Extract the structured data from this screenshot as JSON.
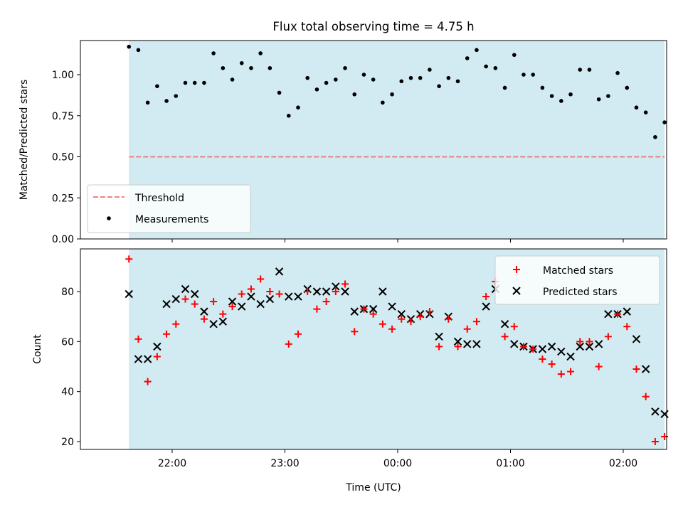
{
  "title": "Flux total observing time = 4.75 h",
  "colors": {
    "band": "#add8e6",
    "threshold": "#f08080",
    "matched": "#ff0000",
    "predicted": "#000000",
    "measurement": "#000000"
  },
  "chart_data": [
    {
      "type": "scatter",
      "title": "Flux total observing time = 4.75 h",
      "ylabel": "Matched/Predicted stars",
      "xlabel": "",
      "ylim": [
        0,
        1.2
      ],
      "yticks": [
        "0.00",
        "0.25",
        "0.50",
        "0.75",
        "1.00"
      ],
      "x_range": [
        "21:23",
        "02:20"
      ],
      "shaded_span": [
        "21:37",
        "02:22"
      ],
      "grid": false,
      "legend_position": "lower-left",
      "threshold": {
        "name": "Threshold",
        "value": 0.5
      },
      "series": [
        {
          "name": "Measurements",
          "x": [
            "21:37",
            "21:42",
            "21:47",
            "21:52",
            "21:57",
            "22:02",
            "22:07",
            "22:12",
            "22:17",
            "22:22",
            "22:27",
            "22:32",
            "22:37",
            "22:42",
            "22:47",
            "22:52",
            "22:57",
            "23:02",
            "23:07",
            "23:12",
            "23:17",
            "23:22",
            "23:27",
            "23:32",
            "23:37",
            "23:42",
            "23:47",
            "23:52",
            "23:57",
            "00:02",
            "00:07",
            "00:12",
            "00:17",
            "00:22",
            "00:27",
            "00:32",
            "00:37",
            "00:42",
            "00:47",
            "00:52",
            "00:57",
            "01:02",
            "01:07",
            "01:12",
            "01:17",
            "01:22",
            "01:27",
            "01:32",
            "01:37",
            "01:42",
            "01:47",
            "01:52",
            "01:57",
            "02:02",
            "02:07",
            "02:12",
            "02:17",
            "02:22"
          ],
          "y": [
            1.17,
            1.15,
            0.83,
            0.93,
            0.84,
            0.87,
            0.95,
            0.95,
            0.95,
            1.13,
            1.04,
            0.97,
            1.07,
            1.04,
            1.13,
            1.04,
            0.89,
            0.75,
            0.8,
            0.98,
            0.91,
            0.95,
            0.97,
            1.04,
            0.88,
            1.0,
            0.97,
            0.83,
            0.88,
            0.96,
            0.98,
            0.98,
            1.03,
            0.93,
            0.98,
            0.96,
            1.1,
            1.15,
            1.05,
            1.04,
            0.92,
            1.12,
            1.0,
            1.0,
            0.92,
            0.87,
            0.84,
            0.88,
            1.03,
            1.03,
            0.85,
            0.87,
            1.01,
            0.92,
            0.8,
            0.77,
            0.62,
            0.71
          ]
        }
      ]
    },
    {
      "type": "scatter",
      "title": "",
      "xlabel": "Time (UTC)",
      "ylabel": "Count",
      "ylim": [
        16,
        96
      ],
      "yticks": [
        "20",
        "40",
        "60",
        "80"
      ],
      "xticks": [
        "22:00",
        "23:00",
        "00:00",
        "01:00",
        "02:00"
      ],
      "x_range": [
        "21:23",
        "02:20"
      ],
      "shaded_span": [
        "21:37",
        "02:22"
      ],
      "grid": false,
      "legend_position": "top-right",
      "series": [
        {
          "name": "Matched stars",
          "x": [
            "21:37",
            "21:42",
            "21:47",
            "21:52",
            "21:57",
            "22:02",
            "22:07",
            "22:12",
            "22:17",
            "22:22",
            "22:27",
            "22:32",
            "22:37",
            "22:42",
            "22:47",
            "22:52",
            "22:57",
            "23:02",
            "23:07",
            "23:12",
            "23:17",
            "23:22",
            "23:27",
            "23:32",
            "23:37",
            "23:42",
            "23:47",
            "23:52",
            "23:57",
            "00:02",
            "00:07",
            "00:12",
            "00:17",
            "00:22",
            "00:27",
            "00:32",
            "00:37",
            "00:42",
            "00:47",
            "00:52",
            "00:57",
            "01:02",
            "01:07",
            "01:12",
            "01:17",
            "01:22",
            "01:27",
            "01:32",
            "01:37",
            "01:42",
            "01:47",
            "01:52",
            "01:57",
            "02:02",
            "02:07",
            "02:12",
            "02:17",
            "02:22"
          ],
          "y": [
            93,
            61,
            44,
            54,
            63,
            67,
            77,
            75,
            69,
            76,
            71,
            74,
            79,
            81,
            85,
            80,
            79,
            59,
            63,
            80,
            73,
            76,
            80,
            83,
            64,
            73,
            71,
            67,
            65,
            69,
            68,
            70,
            72,
            58,
            69,
            58,
            65,
            68,
            78,
            84,
            62,
            66,
            58,
            57,
            53,
            51,
            47,
            48,
            60,
            60,
            50,
            62,
            71,
            66,
            49,
            38,
            20,
            22
          ]
        },
        {
          "name": "Predicted stars",
          "x": [
            "21:37",
            "21:42",
            "21:47",
            "21:52",
            "21:57",
            "22:02",
            "22:07",
            "22:12",
            "22:17",
            "22:22",
            "22:27",
            "22:32",
            "22:37",
            "22:42",
            "22:47",
            "22:52",
            "22:57",
            "23:02",
            "23:07",
            "23:12",
            "23:17",
            "23:22",
            "23:27",
            "23:32",
            "23:37",
            "23:42",
            "23:47",
            "23:52",
            "23:57",
            "00:02",
            "00:07",
            "00:12",
            "00:17",
            "00:22",
            "00:27",
            "00:32",
            "00:37",
            "00:42",
            "00:47",
            "00:52",
            "00:57",
            "01:02",
            "01:07",
            "01:12",
            "01:17",
            "01:22",
            "01:27",
            "01:32",
            "01:37",
            "01:42",
            "01:47",
            "01:52",
            "01:57",
            "02:02",
            "02:07",
            "02:12",
            "02:17",
            "02:22"
          ],
          "y": [
            79,
            53,
            53,
            58,
            75,
            77,
            81,
            79,
            72,
            67,
            68,
            76,
            74,
            78,
            75,
            77,
            88,
            78,
            78,
            81,
            80,
            80,
            82,
            80,
            72,
            73,
            73,
            80,
            74,
            71,
            69,
            71,
            71,
            62,
            70,
            60,
            59,
            59,
            74,
            81,
            67,
            59,
            58,
            57,
            57,
            58,
            56,
            54,
            58,
            58,
            59,
            71,
            71,
            72,
            61,
            49,
            32,
            31
          ]
        }
      ]
    }
  ]
}
